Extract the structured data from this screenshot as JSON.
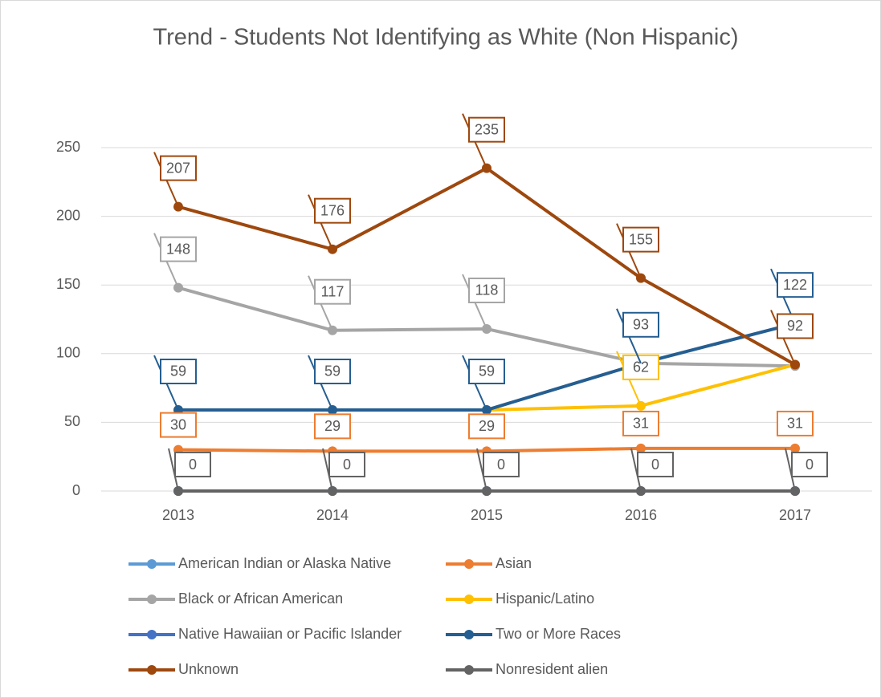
{
  "chart_data": {
    "type": "line",
    "title": "Trend - Students Not Identifying as White (Non Hispanic)",
    "categories": [
      "2013",
      "2014",
      "2015",
      "2016",
      "2017"
    ],
    "ylim": [
      0,
      250
    ],
    "yticks": [
      0,
      50,
      100,
      150,
      200,
      250
    ],
    "grid": true,
    "series": [
      {
        "name": "American Indian or Alaska Native",
        "color": "#5b9bd5",
        "values": [
          0,
          0,
          0,
          0,
          0
        ],
        "show_labels": [
          false,
          false,
          false,
          false,
          false
        ]
      },
      {
        "name": "Asian",
        "color": "#ed7d31",
        "values": [
          30,
          29,
          29,
          31,
          31
        ],
        "show_labels": [
          true,
          true,
          true,
          true,
          true
        ]
      },
      {
        "name": "Black or African American",
        "color": "#a5a5a5",
        "values": [
          148,
          117,
          118,
          93,
          91
        ],
        "show_labels": [
          true,
          true,
          true,
          false,
          false
        ]
      },
      {
        "name": "Hispanic/Latino",
        "color": "#ffc000",
        "values": [
          59,
          59,
          59,
          62,
          92
        ],
        "show_labels": [
          false,
          false,
          false,
          true,
          false
        ]
      },
      {
        "name": "Native Hawaiian or Pacific Islander",
        "color": "#4472c4",
        "values": [
          0,
          0,
          0,
          0,
          0
        ],
        "show_labels": [
          false,
          false,
          false,
          false,
          false
        ]
      },
      {
        "name": "Two or More Races",
        "color": "#255e91",
        "values": [
          59,
          59,
          59,
          93,
          122
        ],
        "show_labels": [
          true,
          true,
          true,
          true,
          true
        ]
      },
      {
        "name": "Unknown",
        "color": "#9e480e",
        "values": [
          207,
          176,
          235,
          155,
          92
        ],
        "show_labels": [
          true,
          true,
          true,
          true,
          true
        ]
      },
      {
        "name": "Nonresident alien",
        "color": "#636363",
        "values": [
          0,
          0,
          0,
          0,
          0
        ],
        "show_labels": [
          true,
          true,
          true,
          true,
          true
        ]
      }
    ]
  }
}
